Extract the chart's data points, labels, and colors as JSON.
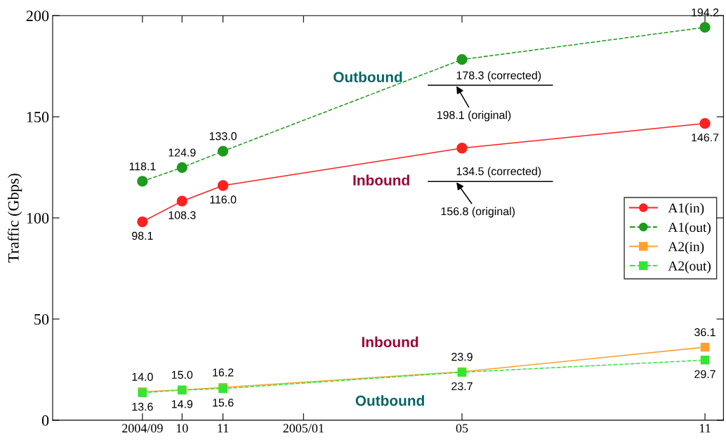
{
  "chart_data": {
    "type": "line",
    "ylabel": "Traffic (Gbps)",
    "x": [
      "2004-09",
      "2004-10",
      "2004-11",
      "2005-05",
      "2005-11"
    ],
    "xlim": [
      "2004-06-25",
      "2005-11-15"
    ],
    "xticks": [
      {
        "value": "2004-09",
        "label": "2004/09"
      },
      {
        "value": "2004-10",
        "label": "10"
      },
      {
        "value": "2004-11",
        "label": "11"
      },
      {
        "value": "2005-01",
        "label": "2005/01"
      },
      {
        "value": "2005-05",
        "label": "05"
      },
      {
        "value": "2005-11",
        "label": "11"
      }
    ],
    "ylim": [
      0,
      200
    ],
    "yticks": [
      0,
      50,
      100,
      150,
      200
    ],
    "grid": false,
    "legend": "center right",
    "series": [
      {
        "name": "A1(in)",
        "color": "#ff2020",
        "marker": "circle",
        "line_style": "solid",
        "values": [
          98.1,
          108.3,
          116.0,
          134.5,
          146.7
        ],
        "value_labels": [
          "98.1",
          "108.3",
          "116.0",
          null,
          "146.7"
        ]
      },
      {
        "name": "A1(out)",
        "color": "#1e9a1e",
        "marker": "circle",
        "line_style": "dashed",
        "values": [
          118.1,
          124.9,
          133.0,
          178.3,
          194.2
        ],
        "value_labels": [
          "118.1",
          "124.9",
          "133.0",
          null,
          "194.2"
        ]
      },
      {
        "name": "A2(in)",
        "color": "#ffa030",
        "marker": "square",
        "line_style": "solid",
        "values": [
          14.0,
          15.0,
          16.2,
          23.9,
          36.1
        ],
        "value_labels": [
          "14.0",
          "15.0",
          "16.2",
          "23.9",
          "36.1"
        ]
      },
      {
        "name": "A2(out)",
        "color": "#33e633",
        "marker": "square",
        "line_style": "dashed",
        "values": [
          13.6,
          14.9,
          15.6,
          23.7,
          29.7
        ],
        "value_labels": [
          "13.6",
          "14.9",
          "15.6",
          "23.7",
          "29.7"
        ]
      }
    ],
    "annotations": [
      "Outbound",
      "178.3 (corrected)",
      "198.1 (original)",
      "Inbound",
      "134.5 (corrected)",
      "156.8 (original)",
      "Inbound",
      "Outbound"
    ]
  }
}
